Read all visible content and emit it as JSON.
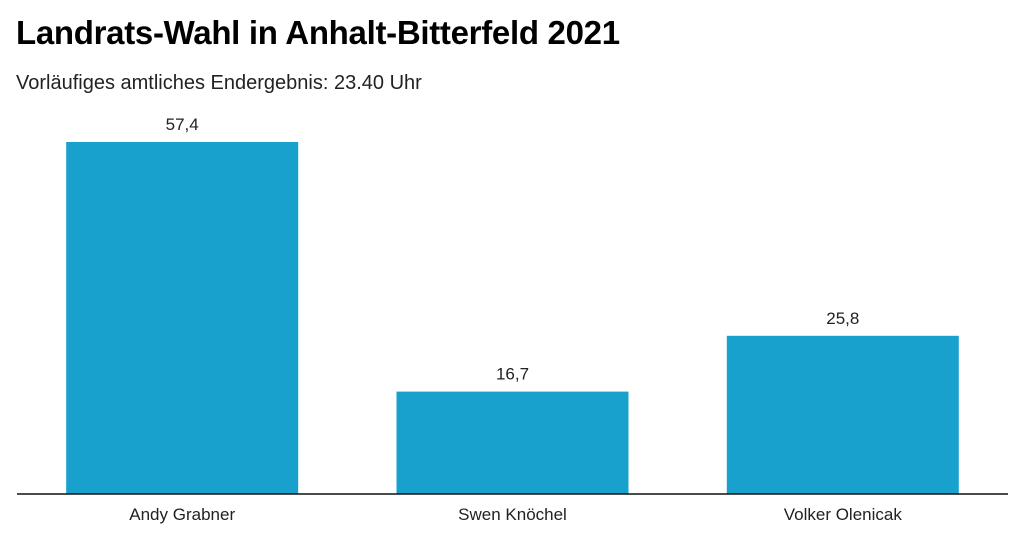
{
  "chart_data": {
    "type": "bar",
    "title": "Landrats-Wahl in Anhalt-Bitterfeld 2021",
    "subtitle": "Vorläufiges amtliches Endergebnis: 23.40 Uhr",
    "categories": [
      "Andy Grabner",
      "Swen Knöchel",
      "Volker Olenicak"
    ],
    "values": [
      57.4,
      16.7,
      25.8
    ],
    "value_labels": [
      "57,4",
      "16,7",
      "25,8"
    ],
    "xlabel": "",
    "ylabel": "",
    "ylim": [
      0,
      57.4
    ],
    "grid": false,
    "bar_color": "#18a1cd"
  }
}
